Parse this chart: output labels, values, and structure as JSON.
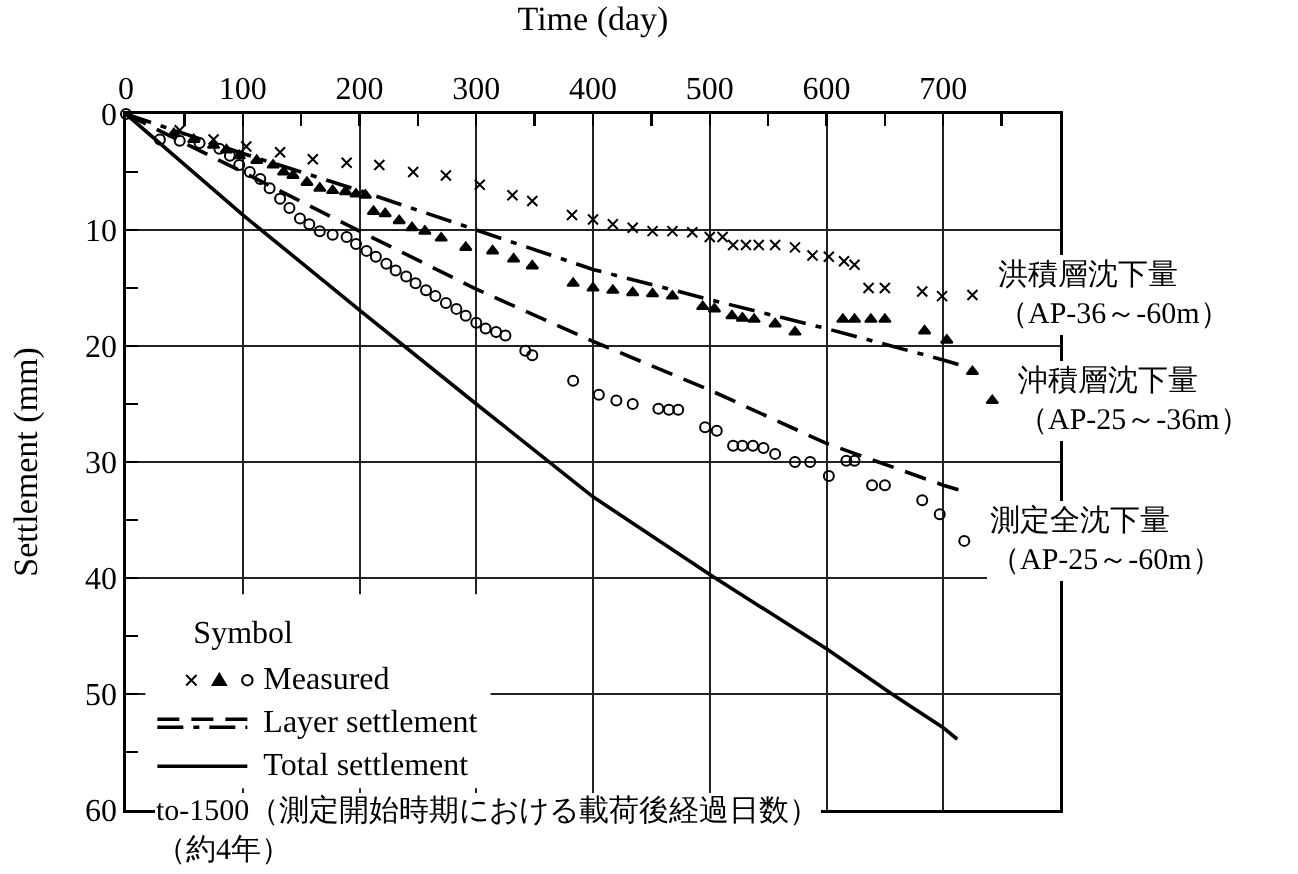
{
  "chart_data": {
    "type": "line",
    "xlabel": "Time (day)",
    "ylabel": "Settlement (mm)",
    "legend_title": "Symbol",
    "legend": "bottom left",
    "grid": true,
    "xlim": [
      0,
      800
    ],
    "xticks": [
      0,
      {
        "value": 50,
        "label": null
      },
      100,
      {
        "value": 150,
        "label": null
      },
      200,
      {
        "value": 250,
        "label": null
      },
      300,
      {
        "value": 350,
        "label": null
      },
      400,
      {
        "value": 450,
        "label": null
      },
      500,
      {
        "value": 550,
        "label": null
      },
      600,
      {
        "value": 650,
        "label": null
      },
      700,
      {
        "value": 750,
        "label": null
      }
    ],
    "ylim": [
      60,
      0
    ],
    "yticks": [
      0,
      {
        "value": 5,
        "label": null
      },
      10,
      {
        "value": 15,
        "label": null
      },
      20,
      {
        "value": 25,
        "label": null
      },
      30,
      {
        "value": 35,
        "label": null
      },
      40,
      {
        "value": 45,
        "label": null
      },
      50,
      {
        "value": 55,
        "label": null
      },
      60
    ],
    "series": [
      {
        "name": "Measured",
        "type": "scatter",
        "marker": "circle",
        "color": "#000000",
        "x": [
          0,
          29,
          46,
          63,
          80,
          89,
          97,
          106,
          115,
          123,
          132,
          140,
          149,
          157,
          166,
          177,
          189,
          197,
          206,
          214,
          223,
          231,
          240,
          248,
          257,
          265,
          274,
          283,
          291,
          300,
          308,
          317,
          325,
          342,
          348,
          383,
          405,
          420,
          434,
          456,
          465,
          473,
          496,
          506,
          520,
          528,
          537,
          546,
          556,
          573,
          586,
          602,
          617,
          624,
          639,
          650,
          682,
          697,
          718
        ],
        "values": [
          0,
          2.2,
          2.3,
          2.5,
          3.0,
          3.6,
          4.4,
          5.0,
          5.6,
          6.4,
          7.3,
          8.1,
          9.0,
          9.5,
          10.1,
          10.4,
          10.6,
          11.2,
          11.8,
          12.3,
          12.9,
          13.5,
          14.0,
          14.6,
          15.2,
          15.7,
          16.3,
          16.8,
          17.4,
          18.0,
          18.5,
          18.8,
          19.1,
          20.4,
          20.8,
          23.0,
          24.2,
          24.7,
          25.0,
          25.4,
          25.5,
          25.5,
          27.0,
          27.3,
          28.6,
          28.6,
          28.6,
          28.8,
          29.3,
          30.0,
          30.0,
          31.2,
          29.9,
          29.9,
          32.0,
          32.0,
          33.3,
          34.5,
          36.8
        ]
      },
      {
        "type": "scatter",
        "marker": "cross",
        "color": "#000000",
        "x": [
          46,
          75,
          103,
          132,
          160,
          189,
          217,
          246,
          274,
          303,
          331,
          348,
          382,
          400,
          417,
          434,
          451,
          468,
          485,
          500,
          511,
          520,
          531,
          542,
          556,
          573,
          588,
          602,
          615,
          624,
          636,
          650,
          682,
          699,
          725
        ],
        "values": [
          1.4,
          2.2,
          2.8,
          3.3,
          3.9,
          4.2,
          4.4,
          5.0,
          5.3,
          6.1,
          7.0,
          7.5,
          8.7,
          9.1,
          9.5,
          9.8,
          10.1,
          10.1,
          10.2,
          10.6,
          10.6,
          11.3,
          11.3,
          11.3,
          11.3,
          11.5,
          12.2,
          12.3,
          12.7,
          13.0,
          15.0,
          15.0,
          15.3,
          15.7,
          15.6
        ]
      },
      {
        "type": "scatter",
        "marker": "triangle",
        "color": "#000000",
        "x": [
          41,
          58,
          75,
          86,
          97,
          112,
          126,
          135,
          143,
          155,
          166,
          177,
          188,
          197,
          205,
          212,
          222,
          234,
          245,
          256,
          270,
          291,
          314,
          332,
          348,
          383,
          400,
          417,
          434,
          451,
          468,
          494,
          504,
          519,
          528,
          538,
          556,
          573,
          614,
          624,
          638,
          650,
          684,
          703,
          725,
          742
        ],
        "values": [
          1.7,
          2.2,
          2.7,
          3.1,
          3.6,
          4.0,
          4.4,
          5.0,
          5.3,
          5.9,
          6.4,
          6.6,
          6.7,
          6.9,
          7.0,
          8.4,
          8.6,
          9.2,
          9.8,
          10.1,
          10.7,
          11.5,
          11.8,
          12.5,
          13.1,
          14.6,
          15.0,
          15.2,
          15.4,
          15.5,
          15.7,
          16.6,
          16.8,
          17.4,
          17.6,
          17.7,
          18.1,
          18.8,
          17.7,
          17.7,
          17.7,
          17.7,
          18.7,
          19.5,
          22.2,
          24.7
        ]
      },
      {
        "name": "Layer settlement",
        "line_style": "dashed",
        "color": "#000000",
        "x": [
          0,
          100,
          200,
          300,
          400,
          500,
          600,
          700,
          713
        ],
        "values": [
          0,
          5.0,
          10.1,
          15.1,
          19.6,
          23.8,
          28.4,
          32.0,
          32.4
        ]
      },
      {
        "line_style": "dashdot",
        "color": "#000000",
        "x": [
          0,
          100,
          200,
          300,
          400,
          500,
          600,
          700,
          713
        ],
        "values": [
          0,
          3.4,
          6.6,
          10.0,
          13.4,
          16.0,
          18.5,
          21.2,
          21.6
        ]
      },
      {
        "name": "Total settlement",
        "line_style": "solid",
        "color": "#000000",
        "x": [
          0,
          100,
          200,
          300,
          400,
          500,
          600,
          656,
          700,
          712
        ],
        "values": [
          0,
          8.7,
          16.9,
          25.0,
          33.0,
          39.7,
          46.1,
          50.0,
          52.9,
          53.9
        ]
      }
    ],
    "annotations": [
      {
        "text": "洪積層沈下量（AP-36～-60m）",
        "x": 725,
        "y": 15.6
      },
      {
        "text": "沖積層沈下量（AP-25～-36m）",
        "x": 742,
        "y": 24.7
      },
      {
        "text": "測定全沈下量（AP-25～-60m）",
        "x": 718,
        "y": 36.8
      },
      "to-1500（測定開始時期における載荷後経過日数）（約4年）"
    ]
  }
}
